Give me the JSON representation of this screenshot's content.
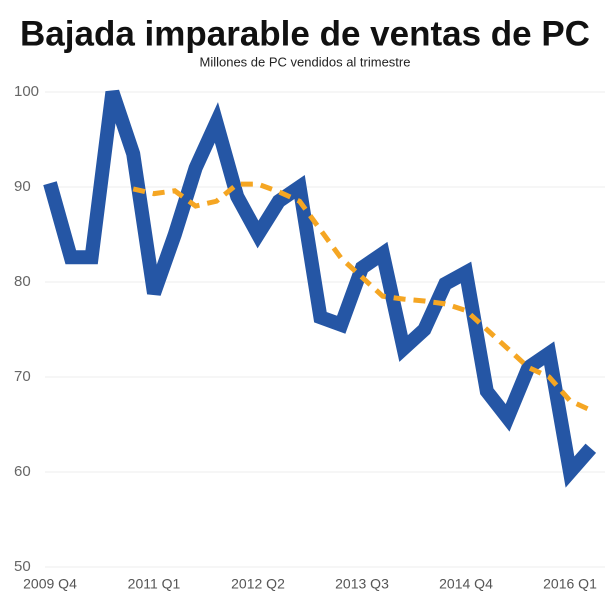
{
  "chart_data": {
    "type": "line",
    "title": "Bajada imparable de ventas de PC",
    "subtitle": "Millones de PC vendidos al trimestre",
    "categories": [
      "2009 Q4",
      null,
      null,
      null,
      null,
      "2011 Q1",
      null,
      null,
      null,
      null,
      "2012 Q2",
      null,
      null,
      null,
      null,
      "2013 Q3",
      null,
      null,
      null,
      null,
      "2014 Q4",
      null,
      null,
      null,
      null,
      "2016 Q1",
      null
    ],
    "series": [
      {
        "color": "#2556a5",
        "style": "solid",
        "values": [
          90.4,
          82.6,
          82.6,
          100,
          93.5,
          78.8,
          85,
          92,
          96.8,
          89,
          85,
          88.5,
          90,
          76.3,
          75.5,
          81.5,
          83,
          73,
          75,
          79.8,
          81,
          68.5,
          65.7,
          71,
          72.5,
          60,
          62.5
        ]
      },
      {
        "color": "#f5a623",
        "style": "dashed",
        "values": [
          null,
          null,
          null,
          null,
          89.8,
          89.3,
          89.6,
          88,
          88.5,
          90.3,
          90.3,
          89.5,
          88.5,
          85.5,
          82.5,
          80.5,
          78.5,
          78.2,
          78,
          77.7,
          77,
          75,
          73,
          71,
          70,
          67.5,
          66.5
        ]
      }
    ],
    "ylim": [
      50,
      100
    ],
    "yticks": [
      50,
      60,
      70,
      80,
      90,
      100
    ],
    "grid": true
  }
}
